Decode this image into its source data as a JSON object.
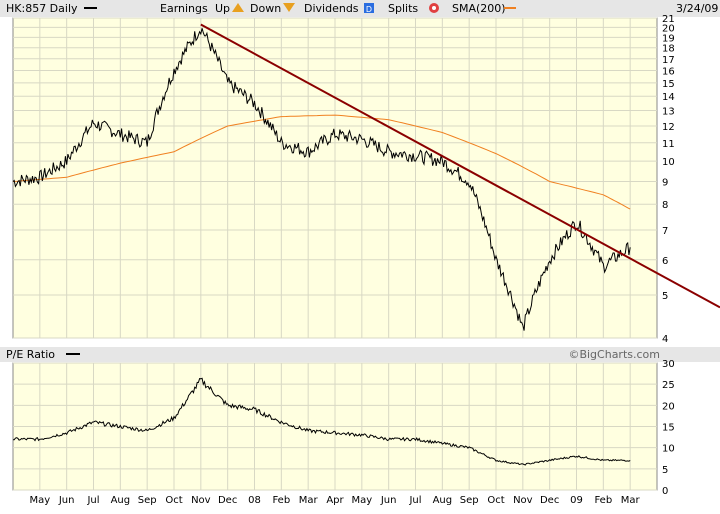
{
  "header": {
    "symbol": "HK:857 Daily",
    "earnings": "Earnings",
    "up": "Up",
    "down": "Down",
    "dividends": "Dividends",
    "dividend_badge": "D",
    "splits": "Splits",
    "sma": "SMA(200)",
    "date": "3/24/09"
  },
  "colors": {
    "plot_bg": "#ffffe0",
    "price": "#000000",
    "sma": "#f08020",
    "trendline": "#8b0000",
    "grid": "#d8d8c4",
    "arrow_up": "#e8a020",
    "dividend_badge": "#2a6de0",
    "split_badge": "#e04040"
  },
  "pe_panel": {
    "label": "P/E Ratio",
    "watermark": "©BigCharts.com"
  },
  "chart_data": [
    {
      "type": "line",
      "title": "HK:857 Daily",
      "y_scale": "log",
      "ylim": [
        4,
        21
      ],
      "y_ticks": [
        4,
        5,
        6,
        7,
        8,
        9,
        10,
        11,
        12,
        13,
        14,
        15,
        16,
        17,
        18,
        19,
        20,
        21
      ],
      "x_ticks": [
        "May",
        "Jun",
        "Jul",
        "Aug",
        "Sep",
        "Oct",
        "Nov",
        "Dec",
        "08",
        "Feb",
        "Mar",
        "Apr",
        "May",
        "Jun",
        "Jul",
        "Aug",
        "Sep",
        "Oct",
        "Nov",
        "Dec",
        "09",
        "Feb",
        "Mar"
      ],
      "series": [
        {
          "name": "HK:857 Daily",
          "kind": "price",
          "x": [
            "Apr-2007",
            "May-2007",
            "Jun-2007",
            "Jul-2007",
            "Aug-2007",
            "Sep-2007",
            "Oct-2007",
            "Nov-2007",
            "Dec-2007",
            "Jan-2008",
            "Feb-2008",
            "Mar-2008",
            "Apr-2008",
            "May-2008",
            "Jun-2008",
            "Jul-2008",
            "Aug-2008",
            "Sep-2008",
            "Oct-2008",
            "Nov-2008",
            "Dec-2008",
            "Jan-2009",
            "Feb-2009",
            "Mar-2009"
          ],
          "y": [
            9.0,
            9.2,
            10.0,
            12.2,
            11.5,
            11.0,
            16.0,
            20.0,
            15.0,
            13.5,
            11.0,
            10.5,
            11.5,
            11.2,
            10.5,
            10.3,
            10.0,
            9.0,
            6.0,
            4.2,
            6.0,
            7.3,
            5.8,
            6.4
          ]
        },
        {
          "name": "SMA(200)",
          "kind": "sma",
          "x": [
            "Apr-2007",
            "Jun-2007",
            "Aug-2007",
            "Oct-2007",
            "Dec-2007",
            "Feb-2008",
            "Apr-2008",
            "Jun-2008",
            "Aug-2008",
            "Oct-2008",
            "Dec-2008",
            "Feb-2009",
            "Mar-2009"
          ],
          "y": [
            9.0,
            9.2,
            9.9,
            10.5,
            12.0,
            12.6,
            12.7,
            12.4,
            11.6,
            10.4,
            9.0,
            8.4,
            7.8
          ]
        },
        {
          "kind": "trendline",
          "x": [
            "Nov-2007",
            "Apr-2009"
          ],
          "y": [
            20.3,
            5.6
          ]
        }
      ]
    },
    {
      "type": "line",
      "title": "P/E Ratio",
      "ylim": [
        0,
        30
      ],
      "y_ticks": [
        0,
        5,
        10,
        15,
        20,
        25,
        30
      ],
      "series": [
        {
          "name": "P/E Ratio",
          "x": [
            "Apr-2007",
            "May-2007",
            "Jun-2007",
            "Jul-2007",
            "Aug-2007",
            "Sep-2007",
            "Oct-2007",
            "Nov-2007",
            "Dec-2007",
            "Jan-2008",
            "Feb-2008",
            "Mar-2008",
            "Apr-2008",
            "May-2008",
            "Jun-2008",
            "Jul-2008",
            "Aug-2008",
            "Sep-2008",
            "Oct-2008",
            "Nov-2008",
            "Dec-2008",
            "Jan-2009",
            "Feb-2009",
            "Mar-2009"
          ],
          "y": [
            12,
            12,
            13.5,
            16,
            15,
            14,
            17,
            26,
            20,
            19,
            16,
            14,
            13.5,
            13,
            12,
            12,
            11,
            10,
            7,
            6,
            7,
            8,
            7,
            7
          ]
        }
      ]
    }
  ]
}
